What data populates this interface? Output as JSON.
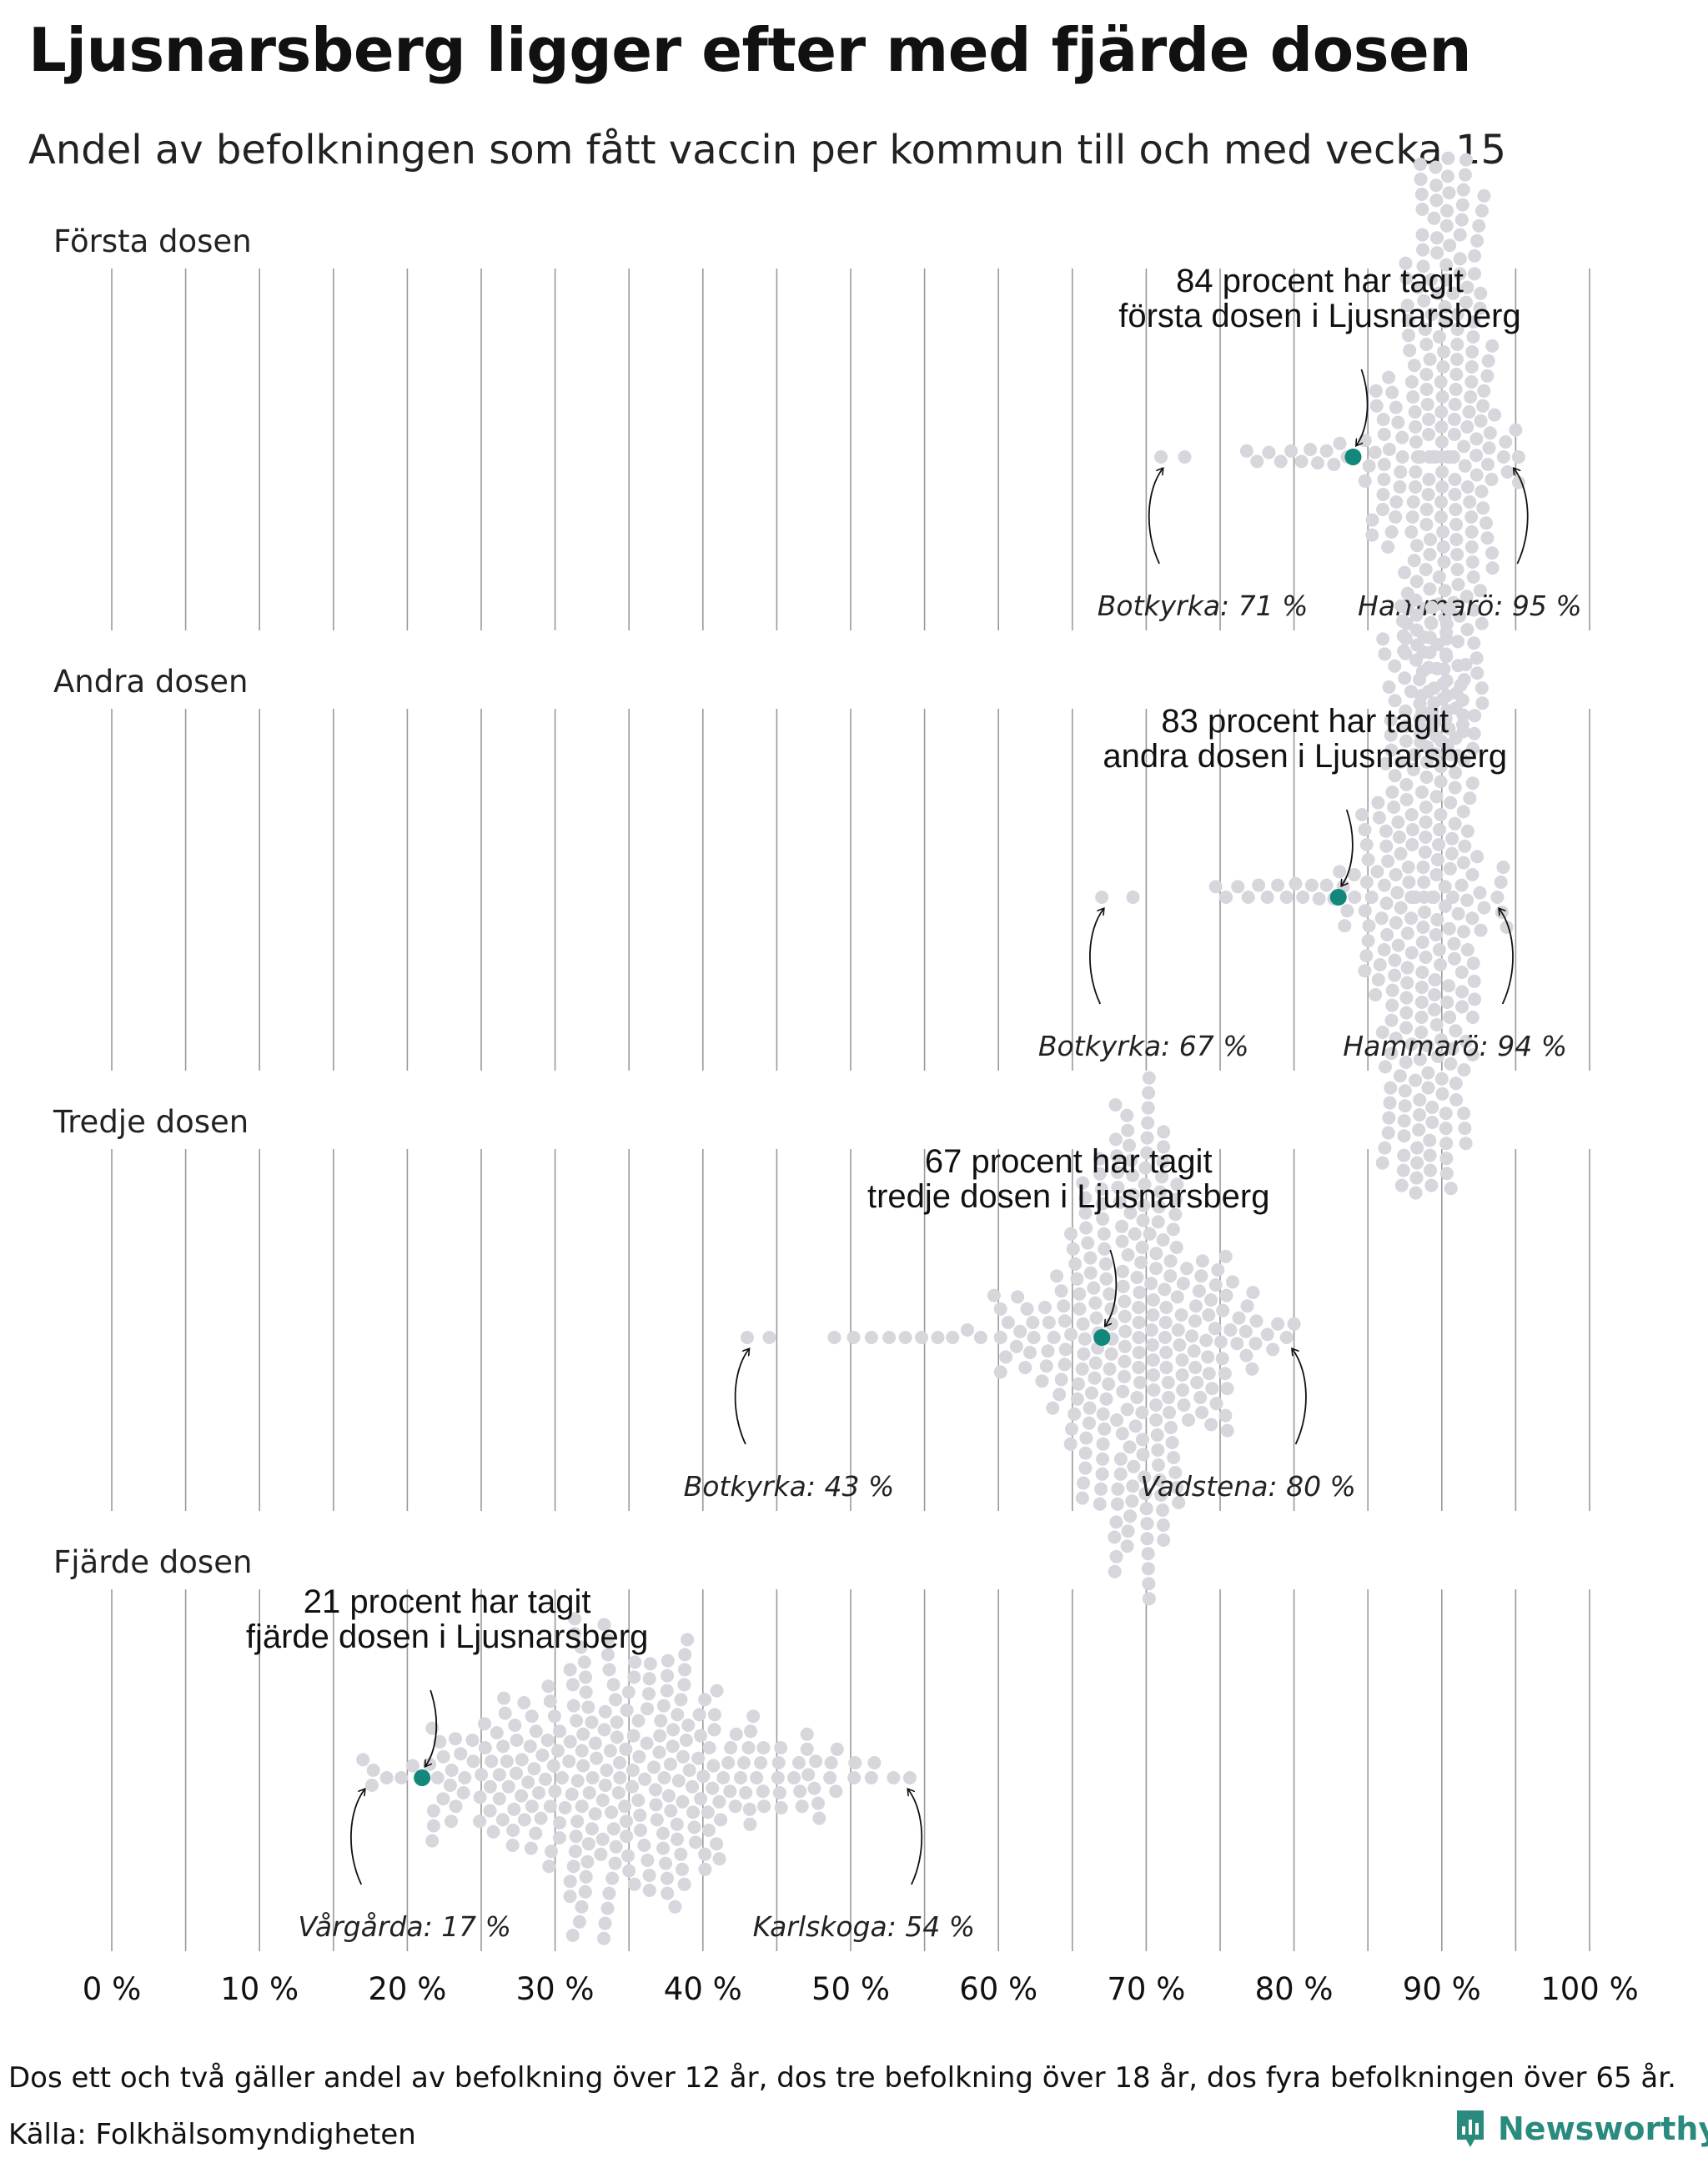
{
  "title": "Ljusnarsberg ligger efter med fjärde dosen",
  "subtitle": "Andel av befolkningen som fått vaccin per kommun till och med vecka 15",
  "footnote": "Dos ett och två gäller andel av befolkning över 12 år, dos tre befolkning över 18 år, dos fyra befolkningen över 65 år.",
  "source": "Källa: Folkhälsomyndigheten",
  "brand": "Newsworthy",
  "colors": {
    "point": "#d6d6dc",
    "highlight": "#12877a",
    "grid": "#9a9a9a",
    "brand": "#2a8a7e"
  },
  "chart_data": {
    "type": "scatter",
    "subtype": "beeswarm",
    "xlim": [
      0,
      100
    ],
    "x_ticks": [
      "0 %",
      "10 %",
      "20 %",
      "30 %",
      "40 %",
      "50 %",
      "60 %",
      "70 %",
      "80 %",
      "90 %",
      "100 %"
    ],
    "grid": true,
    "panels": [
      {
        "label": "Första dosen",
        "highlight": {
          "name": "Ljusnarsberg",
          "value": 84,
          "callout": [
            "84 procent har tagit",
            "första dosen i Ljusnarsberg"
          ]
        },
        "min": {
          "name": "Botkyrka",
          "value": 71,
          "label": "Botkyrka: 71 %"
        },
        "max": {
          "name": "Hammarö",
          "value": 95,
          "label": "Hammarö: 95 %"
        },
        "distribution": {
          "center": 90,
          "spread": 2.0,
          "count": 270
        },
        "tail": [
          72.6,
          76.8,
          77.5,
          78.3,
          79.1,
          79.8,
          80.5,
          81.1,
          81.6,
          82.2,
          82.7,
          83.1,
          83.6,
          84.8,
          85.3
        ]
      },
      {
        "label": "Andra dosen",
        "highlight": {
          "name": "Ljusnarsberg",
          "value": 83,
          "callout": [
            "83 procent har tagit",
            "andra dosen i Ljusnarsberg"
          ]
        },
        "min": {
          "name": "Botkyrka",
          "value": 67,
          "label": "Botkyrka: 67 %"
        },
        "max": {
          "name": "Hammarö",
          "value": 94,
          "label": "Hammarö: 94 %"
        },
        "distribution": {
          "center": 88.8,
          "spread": 2.2,
          "count": 270
        },
        "tail": [
          69.1,
          74.7,
          75.4,
          76.2,
          76.9,
          77.6,
          78.2,
          78.9,
          79.5,
          80.1,
          80.6,
          81.2,
          81.7,
          82.2,
          82.7,
          83.6,
          84.1,
          84.6
        ]
      },
      {
        "label": "Tredje dosen",
        "highlight": {
          "name": "Ljusnarsberg",
          "value": 67,
          "callout": [
            "67 procent har tagit",
            "tredje dosen i Ljusnarsberg"
          ]
        },
        "min": {
          "name": "Botkyrka",
          "value": 43,
          "label": "Botkyrka: 43 %"
        },
        "max": {
          "name": "Vadstena",
          "value": 80,
          "label": "Vadstena: 80 %"
        },
        "distribution": {
          "center": 69.5,
          "spread": 3.6,
          "count": 270
        },
        "tail": [
          44.5,
          48.9,
          50.2,
          51.4,
          52.6,
          53.7,
          54.8,
          55.9,
          56.9,
          57.9,
          58.8,
          59.7,
          60.5,
          61.3,
          77.4,
          78.2,
          78.9,
          79.5
        ]
      },
      {
        "label": "Fjärde dosen",
        "highlight": {
          "name": "Ljusnarsberg",
          "value": 21,
          "callout": [
            "21 procent har tagit",
            "fjärde dosen i Ljusnarsberg"
          ]
        },
        "min": {
          "name": "Vårgårda",
          "value": 17,
          "label": "Vårgårda: 17 %"
        },
        "max": {
          "name": "Karlskoga",
          "value": 54,
          "label": "Karlskoga: 54 %"
        },
        "distribution": {
          "center": 34.5,
          "spread": 6.5,
          "count": 270
        },
        "tail": [
          17.7,
          18.6,
          19.6,
          22.2,
          23.0,
          23.8,
          44.1,
          45.3,
          46.5,
          47.8,
          49.0,
          50.3,
          51.6,
          52.9
        ]
      }
    ]
  }
}
